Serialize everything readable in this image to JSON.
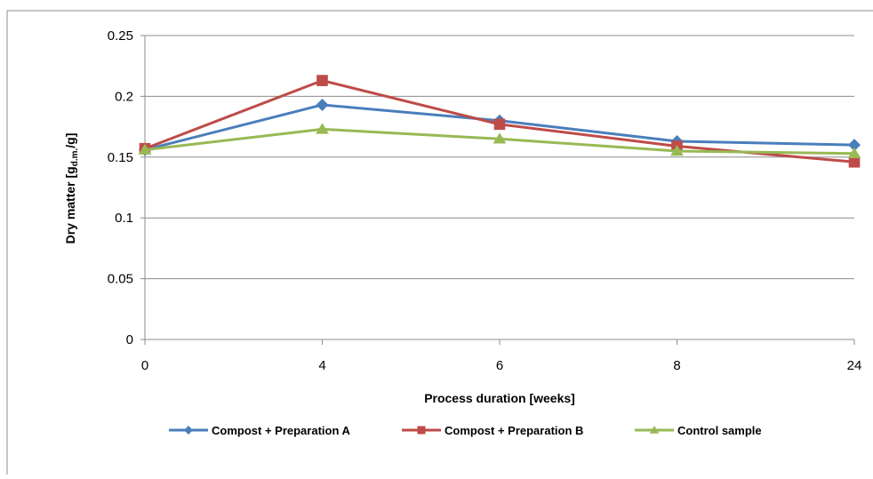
{
  "chart_data": {
    "type": "line",
    "categories": [
      "0",
      "4",
      "6",
      "8",
      "24"
    ],
    "series": [
      {
        "name": "Compost + Preparation A",
        "values": [
          0.156,
          0.193,
          0.18,
          0.163,
          0.16
        ],
        "color": "#4A7EBB",
        "marker": "diamond"
      },
      {
        "name": "Compost + Preparation B",
        "values": [
          0.157,
          0.213,
          0.177,
          0.159,
          0.146
        ],
        "color": "#BE4B48",
        "marker": "square"
      },
      {
        "name": "Control sample",
        "values": [
          0.156,
          0.173,
          0.165,
          0.155,
          0.153
        ],
        "color": "#98B954",
        "marker": "triangle"
      }
    ],
    "yticks": [
      "0",
      "0.05",
      "0.1",
      "0.15",
      "0.2",
      "0.25"
    ],
    "ylim": [
      0,
      0.25
    ],
    "grid": true,
    "legend": "bottom",
    "xlabel": "Process duration [weeks]",
    "ylabel_main": "Dry matter [g",
    "ylabel_sub": "d.m.",
    "ylabel_end": "/g]"
  }
}
